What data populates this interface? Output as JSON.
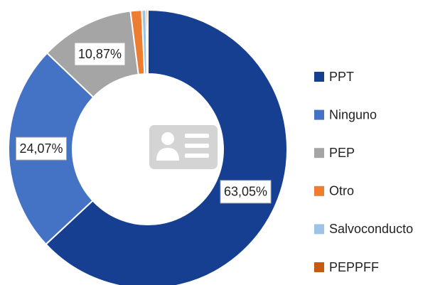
{
  "chart_data": {
    "type": "donut",
    "categories": [
      "PPT",
      "Ninguno",
      "PEP",
      "Otro",
      "Salvoconducto",
      "PEPPFF"
    ],
    "values": [
      63.05,
      24.07,
      10.87,
      1.3,
      0.5,
      0.2
    ],
    "value_labels": [
      "63,05%",
      "24,07%",
      "10,87%",
      null,
      null,
      null
    ],
    "colors": [
      "#163f91",
      "#4472c4",
      "#a5a5a5",
      "#ed7d31",
      "#9dc3e6",
      "#c55a11"
    ],
    "legend": "right"
  }
}
